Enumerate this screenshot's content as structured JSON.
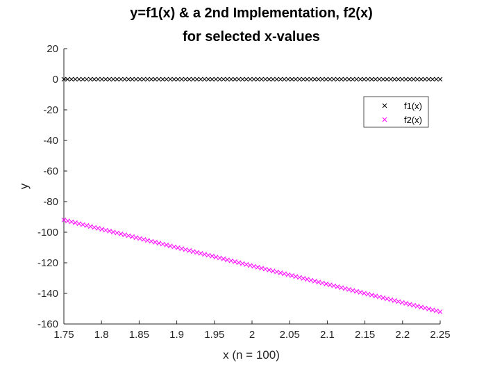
{
  "chart_data": {
    "type": "scatter",
    "title": [
      "y=f1(x) & a 2nd Implementation, f2(x)",
      "for selected x-values"
    ],
    "xlabel": "x (n = 100)",
    "ylabel": "y",
    "xlim": [
      1.75,
      2.25
    ],
    "ylim": [
      -160,
      20
    ],
    "xticks": [
      "1.75",
      "1.8",
      "1.85",
      "1.9",
      "1.95",
      "2",
      "2.05",
      "2.1",
      "2.15",
      "2.2",
      "2.25"
    ],
    "yticks": [
      "20",
      "0",
      "-20",
      "-40",
      "-60",
      "-80",
      "-100",
      "-120",
      "-140",
      "-160"
    ],
    "marker": "x",
    "n": 100,
    "legend": {
      "position": "top-right",
      "entries": [
        "f1(x)",
        "f2(x)"
      ]
    },
    "series": [
      {
        "name": "f1(x)",
        "color": "#000000",
        "x_start": 1.75,
        "x_end": 2.25,
        "y_start": 0,
        "y_end": 0
      },
      {
        "name": "f2(x)",
        "color": "#ff00ff",
        "x_start": 1.75,
        "x_end": 2.25,
        "y_start": -92,
        "y_end": -152
      }
    ]
  }
}
